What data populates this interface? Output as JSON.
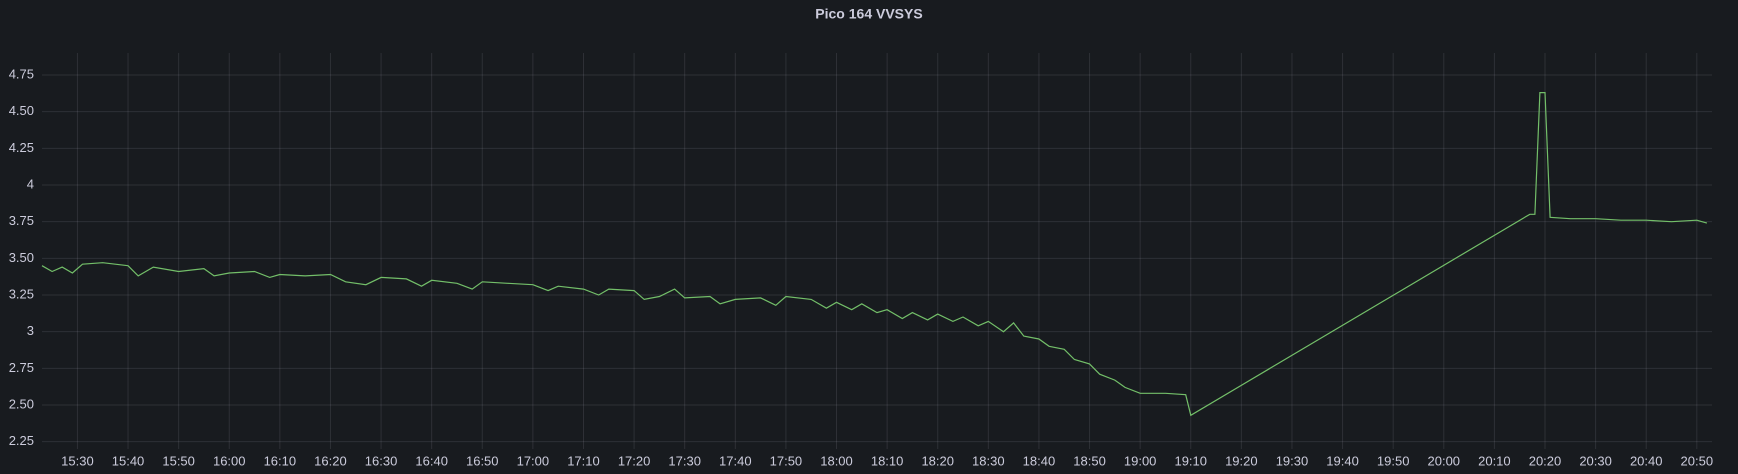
{
  "chart_data": {
    "type": "line",
    "title": "Pico 164 VVSYS",
    "x": [
      "15:23",
      "15:25",
      "15:27",
      "15:29",
      "15:31",
      "15:35",
      "15:40",
      "15:42",
      "15:45",
      "15:50",
      "15:55",
      "15:57",
      "16:00",
      "16:05",
      "16:08",
      "16:10",
      "16:15",
      "16:20",
      "16:23",
      "16:27",
      "16:30",
      "16:35",
      "16:38",
      "16:40",
      "16:45",
      "16:48",
      "16:50",
      "16:55",
      "17:00",
      "17:03",
      "17:05",
      "17:10",
      "17:13",
      "17:15",
      "17:20",
      "17:22",
      "17:25",
      "17:28",
      "17:30",
      "17:35",
      "17:37",
      "17:40",
      "17:45",
      "17:48",
      "17:50",
      "17:55",
      "17:58",
      "18:00",
      "18:03",
      "18:05",
      "18:08",
      "18:10",
      "18:13",
      "18:15",
      "18:18",
      "18:20",
      "18:23",
      "18:25",
      "18:28",
      "18:30",
      "18:33",
      "18:35",
      "18:37",
      "18:40",
      "18:42",
      "18:45",
      "18:47",
      "18:50",
      "18:52",
      "18:55",
      "18:57",
      "19:00",
      "19:05",
      "19:09",
      "19:10",
      "20:17",
      "20:18",
      "20:19",
      "20:20",
      "20:21",
      "20:25",
      "20:30",
      "20:35",
      "20:40",
      "20:45",
      "20:50",
      "20:52"
    ],
    "values": [
      3.45,
      3.41,
      3.44,
      3.4,
      3.46,
      3.47,
      3.45,
      3.38,
      3.44,
      3.41,
      3.43,
      3.38,
      3.4,
      3.41,
      3.37,
      3.39,
      3.38,
      3.39,
      3.34,
      3.32,
      3.37,
      3.36,
      3.31,
      3.35,
      3.33,
      3.29,
      3.34,
      3.33,
      3.32,
      3.28,
      3.31,
      3.29,
      3.25,
      3.29,
      3.28,
      3.22,
      3.24,
      3.29,
      3.23,
      3.24,
      3.19,
      3.22,
      3.23,
      3.18,
      3.24,
      3.22,
      3.16,
      3.2,
      3.15,
      3.19,
      3.13,
      3.15,
      3.09,
      3.13,
      3.08,
      3.12,
      3.07,
      3.1,
      3.04,
      3.07,
      3.0,
      3.06,
      2.97,
      2.95,
      2.9,
      2.88,
      2.81,
      2.78,
      2.71,
      2.67,
      2.62,
      2.58,
      2.58,
      2.57,
      2.43,
      3.8,
      3.8,
      4.63,
      4.63,
      3.78,
      3.77,
      3.77,
      3.76,
      3.76,
      3.75,
      3.76,
      3.74
    ],
    "color": "#73bf69",
    "xlim": [
      "15:23",
      "20:53"
    ],
    "xticks": [
      "15:30",
      "15:40",
      "15:50",
      "16:00",
      "16:10",
      "16:20",
      "16:30",
      "16:40",
      "16:50",
      "17:00",
      "17:10",
      "17:20",
      "17:30",
      "17:40",
      "17:50",
      "18:00",
      "18:10",
      "18:20",
      "18:30",
      "18:40",
      "18:50",
      "19:00",
      "19:10",
      "19:20",
      "19:30",
      "19:40",
      "19:50",
      "20:00",
      "20:10",
      "20:20",
      "20:30",
      "20:40",
      "20:50"
    ],
    "ylim": [
      2.2,
      4.9
    ],
    "yticks": [
      2.25,
      {
        "value": 2.5,
        "label": "2.50"
      },
      2.75,
      3,
      3.25,
      {
        "value": 3.5,
        "label": "3.50"
      },
      3.75,
      4,
      4.25,
      {
        "value": 4.5,
        "label": "4.50"
      },
      4.75
    ],
    "grid": true
  }
}
